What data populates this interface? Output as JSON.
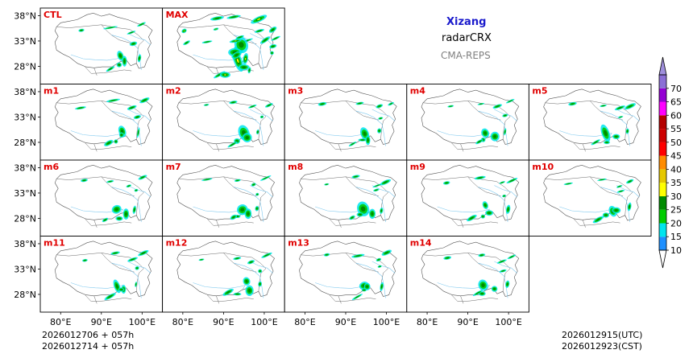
{
  "chart_data": {
    "type": "heatmap",
    "title": {
      "region": "Xizang",
      "variable": "radarCRX",
      "model": "CMA-REPS"
    },
    "panels": [
      {
        "label": "CTL",
        "row": 0,
        "col": 0
      },
      {
        "label": "MAX",
        "row": 0,
        "col": 1
      },
      {
        "label": "m1",
        "row": 1,
        "col": 0
      },
      {
        "label": "m2",
        "row": 1,
        "col": 1
      },
      {
        "label": "m3",
        "row": 1,
        "col": 2
      },
      {
        "label": "m4",
        "row": 1,
        "col": 3
      },
      {
        "label": "m5",
        "row": 1,
        "col": 4
      },
      {
        "label": "m6",
        "row": 2,
        "col": 0
      },
      {
        "label": "m7",
        "row": 2,
        "col": 1
      },
      {
        "label": "m8",
        "row": 2,
        "col": 2
      },
      {
        "label": "m9",
        "row": 2,
        "col": 3
      },
      {
        "label": "m10",
        "row": 2,
        "col": 4
      },
      {
        "label": "m11",
        "row": 3,
        "col": 0
      },
      {
        "label": "m12",
        "row": 3,
        "col": 1
      },
      {
        "label": "m13",
        "row": 3,
        "col": 2
      },
      {
        "label": "m14",
        "row": 3,
        "col": 3
      }
    ],
    "lat_ticks": [
      "38°N",
      "33°N",
      "28°N"
    ],
    "lat_values": [
      38,
      33,
      28
    ],
    "lon_ticks": [
      "80°E",
      "90°E",
      "100°E"
    ],
    "lon_values": [
      80,
      90,
      100
    ],
    "lon_range": [
      75,
      105
    ],
    "lat_range": [
      24.5,
      39.5
    ],
    "colorbar": {
      "levels": [
        "10",
        "15",
        "20",
        "25",
        "30",
        "35",
        "40",
        "45",
        "50",
        "55",
        "60",
        "65",
        "70"
      ],
      "colors": [
        "#1e90ff",
        "#00e5ee",
        "#00cd00",
        "#008b00",
        "#ffff00",
        "#e6c800",
        "#ff8c00",
        "#ff0000",
        "#cd0000",
        "#b40000",
        "#ff00ff",
        "#9400d3",
        "#8b6fd6"
      ],
      "under_color": "#ffffff",
      "over_color": "#9f8fdc"
    },
    "footer": {
      "init_utc": "2026012706  +  057h",
      "init_cst": "2026012714  +  057h",
      "valid_utc": "2026012915(UTC)",
      "valid_cst": "2026012923(CST)"
    }
  }
}
